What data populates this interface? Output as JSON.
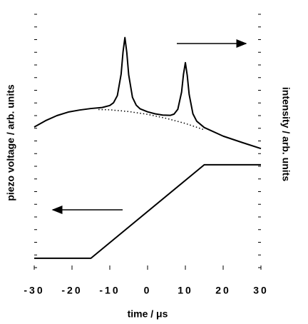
{
  "chart_data": {
    "type": "line",
    "xlabel": "time / μs",
    "ylabel": "piezo voltage / arb. units",
    "y2label": "intensity / arb. units",
    "xlim": [
      -30,
      30
    ],
    "xticks": [
      -30,
      -20,
      -10,
      0,
      10,
      20,
      30
    ],
    "ylim": [
      0,
      10
    ],
    "yticks": [
      0,
      0.5,
      1,
      1.5,
      2,
      2.5,
      3,
      3.5,
      4,
      4.5,
      5,
      5.5,
      6,
      6.5,
      7,
      7.5,
      8,
      8.5,
      9,
      9.5,
      10
    ],
    "series": [
      {
        "color": "#000000",
        "style": "solid",
        "x": [
          -30,
          -27,
          -24,
          -21,
          -18,
          -15,
          -12,
          -10,
          -9,
          -8,
          -7,
          -6.5,
          -6,
          -5.5,
          -5,
          -4,
          -3,
          -2,
          0,
          2,
          4,
          6,
          7,
          8,
          9,
          9.5,
          10,
          10.5,
          11,
          12,
          13,
          15,
          20,
          25,
          30
        ],
        "values": [
          5.55,
          5.8,
          6.0,
          6.14,
          6.22,
          6.28,
          6.32,
          6.4,
          6.51,
          6.79,
          7.64,
          8.51,
          9.08,
          8.49,
          7.61,
          6.72,
          6.41,
          6.27,
          6.15,
          6.07,
          6.02,
          6.01,
          6.06,
          6.25,
          6.93,
          7.63,
          8.09,
          7.58,
          6.84,
          6.07,
          5.78,
          5.53,
          5.19,
          4.94,
          4.7
        ]
      },
      {
        "color": "#000000",
        "style": "dotted",
        "x": [
          -13,
          -10,
          -5,
          0,
          5,
          10,
          15
        ],
        "values": [
          6.24,
          6.23,
          6.16,
          6.05,
          5.89,
          5.69,
          5.44
        ]
      },
      {
        "color": "#000000",
        "style": "solid",
        "x": [
          -30,
          -15,
          15,
          30
        ],
        "values": [
          0.37,
          0.37,
          4.06,
          4.06
        ]
      }
    ]
  }
}
